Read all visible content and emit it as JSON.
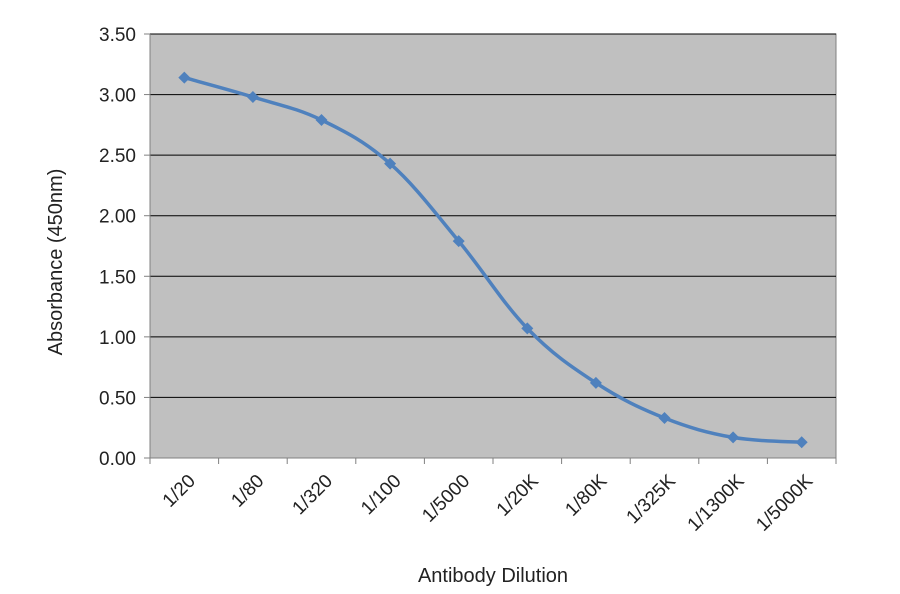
{
  "chart_data": {
    "type": "line",
    "categories": [
      "1/20",
      "1/80",
      "1/320",
      "1/100",
      "1/5000",
      "1/20K",
      "1/80K",
      "1/325K",
      "1/1300K",
      "1/5000K"
    ],
    "values": [
      3.14,
      2.98,
      2.79,
      2.43,
      1.79,
      1.07,
      0.62,
      0.33,
      0.17,
      0.13
    ],
    "xlabel": "Antibody Dilution",
    "ylabel": "Absorbance (450nm)",
    "ylim": [
      0,
      3.5
    ],
    "yticks": [
      "0.00",
      "0.50",
      "1.00",
      "1.50",
      "2.00",
      "2.50",
      "3.00",
      "3.50"
    ],
    "grid": "horizontal",
    "legend": "none",
    "colors": {
      "line": "#4f81bd",
      "plot_background": "#c0c0c0",
      "gridline": "#000000",
      "axis": "#808080"
    }
  }
}
